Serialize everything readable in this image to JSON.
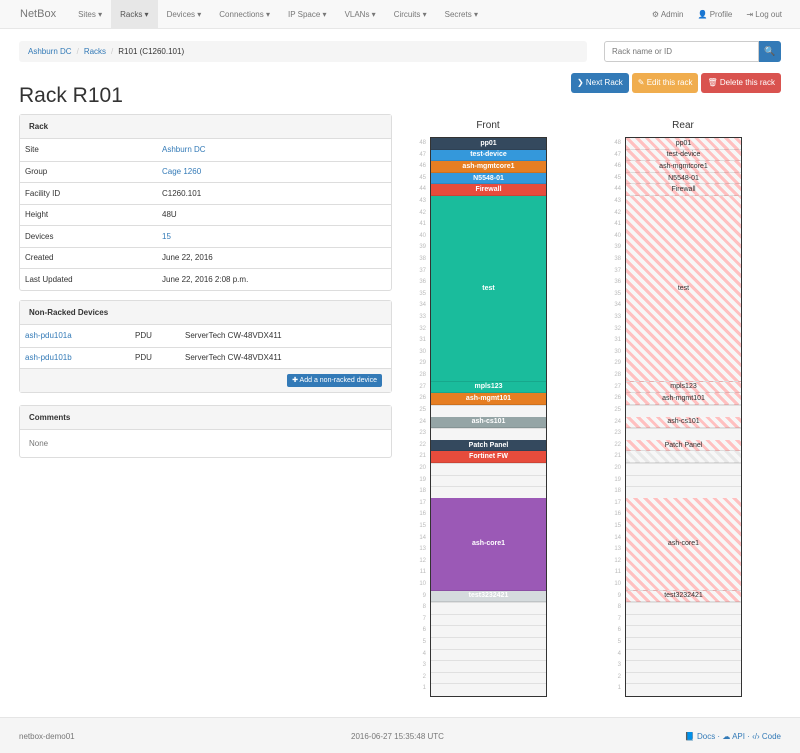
{
  "nav": {
    "brand": "NetBox",
    "items": [
      "Sites ▾",
      "Racks ▾",
      "Devices ▾",
      "Connections ▾",
      "IP Space ▾",
      "VLANs ▾",
      "Circuits ▾",
      "Secrets ▾"
    ],
    "admin": "⚙ Admin",
    "profile": "👤 Profile",
    "logout": "⇥ Log out"
  },
  "breadcrumb": [
    "Ashburn DC",
    "Racks",
    "R101 (C1260.101)"
  ],
  "search": {
    "placeholder": "Rack name or ID",
    "icon": "🔍"
  },
  "actions": {
    "next": "❯ Next Rack",
    "edit": "✎ Edit this rack",
    "delete": "🗑 Delete this rack"
  },
  "title": "Rack R101",
  "rack_panel": {
    "heading": "Rack",
    "rows": [
      {
        "k": "Site",
        "v": "Ashburn DC",
        "link": true
      },
      {
        "k": "Group",
        "v": "Cage 1260",
        "link": true
      },
      {
        "k": "Facility ID",
        "v": "C1260.101"
      },
      {
        "k": "Height",
        "v": "48U"
      },
      {
        "k": "Devices",
        "v": "15",
        "link": true
      },
      {
        "k": "Created",
        "v": "June 22, 2016"
      },
      {
        "k": "Last Updated",
        "v": "June 22, 2016 2:08 p.m."
      }
    ]
  },
  "nonracked": {
    "heading": "Non-Racked Devices",
    "rows": [
      {
        "name": "ash-pdu101a",
        "role": "PDU",
        "type": "ServerTech CW-48VDX411"
      },
      {
        "name": "ash-pdu101b",
        "role": "PDU",
        "type": "ServerTech CW-48VDX411"
      }
    ],
    "add": "✚ Add a non-racked device"
  },
  "comments": {
    "heading": "Comments",
    "text": "None"
  },
  "rack_height": 48,
  "front": {
    "title": "Front",
    "devices": [
      {
        "name": "pp01",
        "top": 48,
        "u": 1,
        "color": "#34495e"
      },
      {
        "name": "test-device",
        "top": 47,
        "u": 1,
        "color": "#3498db"
      },
      {
        "name": "ash-mgmtcore1",
        "top": 46,
        "u": 1,
        "color": "#e67e22"
      },
      {
        "name": "N5548-01",
        "top": 45,
        "u": 1,
        "color": "#3498db"
      },
      {
        "name": "Firewall",
        "top": 44,
        "u": 1,
        "color": "#e74c3c"
      },
      {
        "name": "test",
        "top": 43,
        "u": 16,
        "color": "#1abc9c"
      },
      {
        "name": "mpls123",
        "top": 27,
        "u": 1,
        "color": "#1abc9c"
      },
      {
        "name": "ash-mgmt101",
        "top": 26,
        "u": 1,
        "color": "#e67e22"
      },
      {
        "name": "ash-cs101",
        "top": 24,
        "u": 1,
        "color": "#95a5a6"
      },
      {
        "name": "Patch Panel",
        "top": 22,
        "u": 1,
        "color": "#34495e"
      },
      {
        "name": "Fortinet FW",
        "top": 21,
        "u": 1,
        "color": "#e74c3c"
      },
      {
        "name": "ash-core1",
        "top": 17,
        "u": 8,
        "color": "#9b59b6"
      },
      {
        "name": "test3232421",
        "top": 9,
        "u": 1,
        "color": "#d5dbdd"
      }
    ]
  },
  "rear": {
    "title": "Rear",
    "devices": [
      {
        "name": "pp01",
        "top": 48,
        "u": 1
      },
      {
        "name": "test-device",
        "top": 47,
        "u": 1
      },
      {
        "name": "ash-mgmtcore1",
        "top": 46,
        "u": 1
      },
      {
        "name": "N5548-01",
        "top": 45,
        "u": 1
      },
      {
        "name": "Firewall",
        "top": 44,
        "u": 1
      },
      {
        "name": "test",
        "top": 43,
        "u": 16
      },
      {
        "name": "mpls123",
        "top": 27,
        "u": 1
      },
      {
        "name": "ash-mgmt101",
        "top": 26,
        "u": 1
      },
      {
        "name": "ash-cs101",
        "top": 24,
        "u": 1
      },
      {
        "name": "Patch Panel",
        "top": 22,
        "u": 1
      },
      {
        "name": "",
        "top": 21,
        "u": 1,
        "faint": true
      },
      {
        "name": "ash-core1",
        "top": 17,
        "u": 8
      },
      {
        "name": "test3232421",
        "top": 9,
        "u": 1
      }
    ]
  },
  "footer": {
    "host": "netbox-demo01",
    "time": "2016-06-27 15:35:48 UTC",
    "links": "📘 Docs · ☁ API · ‹/› Code"
  }
}
